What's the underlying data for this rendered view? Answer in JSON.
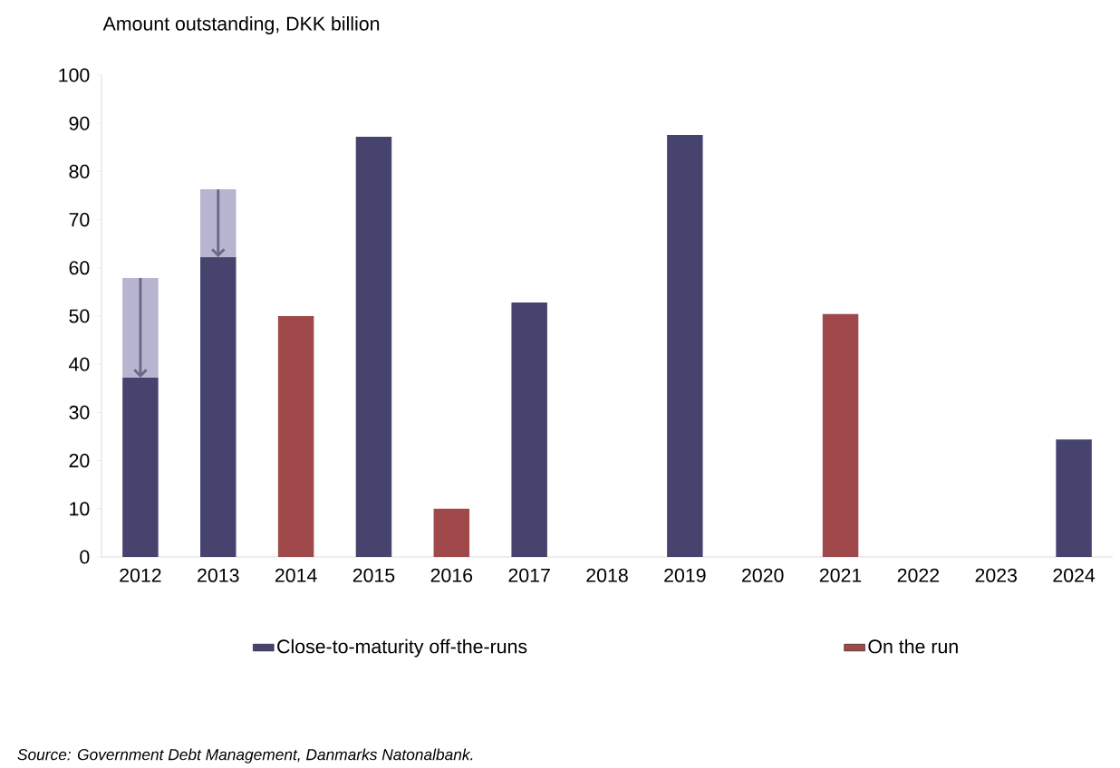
{
  "chart_data": {
    "type": "bar",
    "ylabel": "Amount outstanding, DKK billion",
    "categories": [
      "2012",
      "2013",
      "2014",
      "2015",
      "2016",
      "2017",
      "2018",
      "2019",
      "2020",
      "2021",
      "2022",
      "2023",
      "2024"
    ],
    "stacked": true,
    "series": [
      {
        "name": "Close-to-maturity off-the-runs",
        "color": "#46446e",
        "values": [
          37.2,
          62.2,
          null,
          87.2,
          null,
          52.8,
          null,
          87.6,
          null,
          null,
          null,
          null,
          24.4
        ]
      },
      {
        "name": "On the run",
        "color": "#a0494a",
        "values": [
          null,
          null,
          50,
          null,
          10,
          null,
          null,
          null,
          null,
          50.4,
          null,
          null,
          null
        ]
      },
      {
        "color": "#b7b5cf",
        "values": [
          20.7,
          14.1,
          null,
          null,
          null,
          null,
          null,
          null,
          null,
          null,
          null,
          null,
          null
        ]
      }
    ],
    "ylim": [
      0,
      100
    ],
    "yticks": [
      0,
      10,
      20,
      30,
      40,
      50,
      60,
      70,
      80,
      90,
      100
    ],
    "legend": "bottom",
    "annotations": [
      "Source: Government Debt Management, Danmarks Natonalbank."
    ]
  }
}
